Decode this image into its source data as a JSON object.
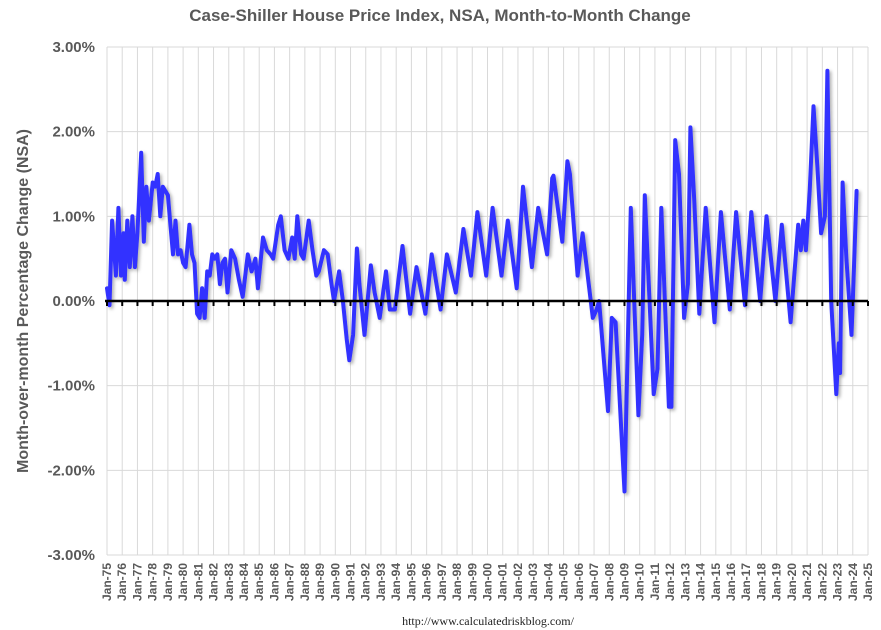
{
  "chart_data": {
    "type": "line",
    "title": "Case-Shiller House Price Index, NSA, Month-to-Month Change",
    "ylabel": "Month-over-month Percentage Change (NSA)",
    "xlabel": "",
    "source": "http://www.calculatedriskblog.com/",
    "ylim": [
      -3,
      3
    ],
    "yticks": [
      "-3.00%",
      "-2.00%",
      "-1.00%",
      "0.00%",
      "1.00%",
      "2.00%",
      "3.00%"
    ],
    "xlim": [
      "1975-01",
      "2025-01"
    ],
    "xticks": [
      "Jan-75",
      "Jan-76",
      "Jan-77",
      "Jan-78",
      "Jan-79",
      "Jan-80",
      "Jan-81",
      "Jan-82",
      "Jan-83",
      "Jan-84",
      "Jan-85",
      "Jan-86",
      "Jan-87",
      "Jan-88",
      "Jan-89",
      "Jan-90",
      "Jan-91",
      "Jan-92",
      "Jan-93",
      "Jan-94",
      "Jan-95",
      "Jan-96",
      "Jan-97",
      "Jan-98",
      "Jan-99",
      "Jan-00",
      "Jan-01",
      "Jan-02",
      "Jan-03",
      "Jan-04",
      "Jan-05",
      "Jan-06",
      "Jan-07",
      "Jan-08",
      "Jan-09",
      "Jan-10",
      "Jan-11",
      "Jan-12",
      "Jan-13",
      "Jan-14",
      "Jan-15",
      "Jan-16",
      "Jan-17",
      "Jan-18",
      "Jan-19",
      "Jan-20",
      "Jan-21",
      "Jan-22",
      "Jan-23",
      "Jan-24",
      "Jan-25"
    ],
    "grid": true,
    "line_color": "#3333FF",
    "zero_line_color": "#000000",
    "series": [
      {
        "points": [
          [
            "1975-01",
            0.15
          ],
          [
            "1975-03",
            -0.05
          ],
          [
            "1975-05",
            0.95
          ],
          [
            "1975-08",
            0.3
          ],
          [
            "1975-10",
            1.1
          ],
          [
            "1975-12",
            0.3
          ],
          [
            "1976-02",
            0.8
          ],
          [
            "1976-03",
            0.25
          ],
          [
            "1976-05",
            0.95
          ],
          [
            "1976-07",
            0.4
          ],
          [
            "1976-09",
            1.0
          ],
          [
            "1976-11",
            0.4
          ],
          [
            "1977-01",
            0.8
          ],
          [
            "1977-04",
            1.75
          ],
          [
            "1977-06",
            0.7
          ],
          [
            "1977-08",
            1.35
          ],
          [
            "1977-10",
            0.95
          ],
          [
            "1978-01",
            1.4
          ],
          [
            "1978-03",
            1.35
          ],
          [
            "1978-05",
            1.5
          ],
          [
            "1978-07",
            1.0
          ],
          [
            "1978-09",
            1.35
          ],
          [
            "1978-11",
            1.3
          ],
          [
            "1979-01",
            1.25
          ],
          [
            "1979-03",
            0.9
          ],
          [
            "1979-05",
            0.55
          ],
          [
            "1979-07",
            0.95
          ],
          [
            "1979-09",
            0.55
          ],
          [
            "1979-11",
            0.6
          ],
          [
            "1980-01",
            0.45
          ],
          [
            "1980-03",
            0.4
          ],
          [
            "1980-06",
            0.9
          ],
          [
            "1980-08",
            0.55
          ],
          [
            "1980-10",
            0.45
          ],
          [
            "1980-12",
            -0.15
          ],
          [
            "1981-02",
            -0.2
          ],
          [
            "1981-04",
            0.15
          ],
          [
            "1981-06",
            -0.2
          ],
          [
            "1981-08",
            0.35
          ],
          [
            "1981-10",
            0.3
          ],
          [
            "1981-12",
            0.55
          ],
          [
            "1982-02",
            0.5
          ],
          [
            "1982-04",
            0.55
          ],
          [
            "1982-06",
            0.2
          ],
          [
            "1982-08",
            0.45
          ],
          [
            "1982-10",
            0.5
          ],
          [
            "1982-12",
            0.1
          ],
          [
            "1983-03",
            0.6
          ],
          [
            "1983-06",
            0.5
          ],
          [
            "1983-09",
            0.25
          ],
          [
            "1983-12",
            0.05
          ],
          [
            "1984-04",
            0.55
          ],
          [
            "1984-07",
            0.35
          ],
          [
            "1984-10",
            0.5
          ],
          [
            "1984-12",
            0.15
          ],
          [
            "1985-04",
            0.75
          ],
          [
            "1985-07",
            0.6
          ],
          [
            "1985-10",
            0.55
          ],
          [
            "1985-12",
            0.5
          ],
          [
            "1986-04",
            0.9
          ],
          [
            "1986-06",
            1.0
          ],
          [
            "1986-09",
            0.6
          ],
          [
            "1986-12",
            0.5
          ],
          [
            "1987-03",
            0.75
          ],
          [
            "1987-05",
            0.5
          ],
          [
            "1987-07",
            1.0
          ],
          [
            "1987-10",
            0.55
          ],
          [
            "1987-12",
            0.5
          ],
          [
            "1988-04",
            0.95
          ],
          [
            "1988-07",
            0.6
          ],
          [
            "1988-10",
            0.3
          ],
          [
            "1988-12",
            0.35
          ],
          [
            "1989-04",
            0.6
          ],
          [
            "1989-07",
            0.55
          ],
          [
            "1989-10",
            0.2
          ],
          [
            "1989-12",
            0.0
          ],
          [
            "1990-04",
            0.35
          ],
          [
            "1990-07",
            0.0
          ],
          [
            "1990-10",
            -0.45
          ],
          [
            "1990-12",
            -0.7
          ],
          [
            "1991-03",
            -0.4
          ],
          [
            "1991-06",
            0.62
          ],
          [
            "1991-08",
            0.2
          ],
          [
            "1991-12",
            -0.4
          ],
          [
            "1992-05",
            0.42
          ],
          [
            "1992-08",
            0.1
          ],
          [
            "1992-12",
            -0.2
          ],
          [
            "1993-05",
            0.35
          ],
          [
            "1993-08",
            -0.1
          ],
          [
            "1993-12",
            -0.1
          ],
          [
            "1994-06",
            0.65
          ],
          [
            "1994-12",
            -0.15
          ],
          [
            "1995-05",
            0.4
          ],
          [
            "1995-12",
            -0.15
          ],
          [
            "1996-05",
            0.55
          ],
          [
            "1996-12",
            -0.1
          ],
          [
            "1997-05",
            0.55
          ],
          [
            "1997-12",
            0.1
          ],
          [
            "1998-06",
            0.85
          ],
          [
            "1998-12",
            0.3
          ],
          [
            "1999-05",
            1.05
          ],
          [
            "1999-12",
            0.3
          ],
          [
            "2000-05",
            1.1
          ],
          [
            "2000-12",
            0.3
          ],
          [
            "2001-05",
            0.95
          ],
          [
            "2001-12",
            0.15
          ],
          [
            "2002-05",
            1.35
          ],
          [
            "2002-12",
            0.4
          ],
          [
            "2003-05",
            1.1
          ],
          [
            "2003-12",
            0.55
          ],
          [
            "2004-04",
            1.45
          ],
          [
            "2004-05",
            1.48
          ],
          [
            "2004-12",
            0.7
          ],
          [
            "2005-04",
            1.65
          ],
          [
            "2005-06",
            1.5
          ],
          [
            "2005-12",
            0.3
          ],
          [
            "2006-04",
            0.8
          ],
          [
            "2006-12",
            -0.2
          ],
          [
            "2007-03",
            -0.1
          ],
          [
            "2007-05",
            0.0
          ],
          [
            "2007-12",
            -1.3
          ],
          [
            "2008-03",
            -0.2
          ],
          [
            "2008-06",
            -0.25
          ],
          [
            "2009-01",
            -2.25
          ],
          [
            "2009-06",
            1.1
          ],
          [
            "2009-12",
            -1.35
          ],
          [
            "2010-03",
            -0.4
          ],
          [
            "2010-05",
            1.25
          ],
          [
            "2010-12",
            -1.1
          ],
          [
            "2011-03",
            -0.8
          ],
          [
            "2011-06",
            1.1
          ],
          [
            "2011-12",
            -1.25
          ],
          [
            "2012-02",
            -1.25
          ],
          [
            "2012-05",
            1.9
          ],
          [
            "2012-08",
            1.5
          ],
          [
            "2012-12",
            -0.2
          ],
          [
            "2013-03",
            0.2
          ],
          [
            "2013-05",
            2.05
          ],
          [
            "2013-08",
            1.2
          ],
          [
            "2013-12",
            -0.15
          ],
          [
            "2014-05",
            1.1
          ],
          [
            "2014-12",
            -0.25
          ],
          [
            "2015-05",
            1.05
          ],
          [
            "2015-12",
            -0.1
          ],
          [
            "2016-05",
            1.05
          ],
          [
            "2016-12",
            -0.05
          ],
          [
            "2017-05",
            1.05
          ],
          [
            "2017-12",
            0.0
          ],
          [
            "2018-05",
            1.0
          ],
          [
            "2018-12",
            0.0
          ],
          [
            "2019-05",
            0.9
          ],
          [
            "2019-12",
            -0.25
          ],
          [
            "2020-06",
            0.9
          ],
          [
            "2020-08",
            0.6
          ],
          [
            "2020-10",
            0.95
          ],
          [
            "2020-12",
            0.6
          ],
          [
            "2021-03",
            1.3
          ],
          [
            "2021-06",
            2.3
          ],
          [
            "2021-09",
            1.6
          ],
          [
            "2021-12",
            0.8
          ],
          [
            "2022-03",
            1.0
          ],
          [
            "2022-05",
            2.72
          ],
          [
            "2022-08",
            0.0
          ],
          [
            "2022-12",
            -1.1
          ],
          [
            "2023-02",
            -0.5
          ],
          [
            "2023-03",
            -0.85
          ],
          [
            "2023-05",
            1.4
          ],
          [
            "2023-08",
            0.5
          ],
          [
            "2023-12",
            -0.4
          ],
          [
            "2024-01",
            0.0
          ],
          [
            "2024-04",
            1.3
          ]
        ]
      }
    ]
  }
}
